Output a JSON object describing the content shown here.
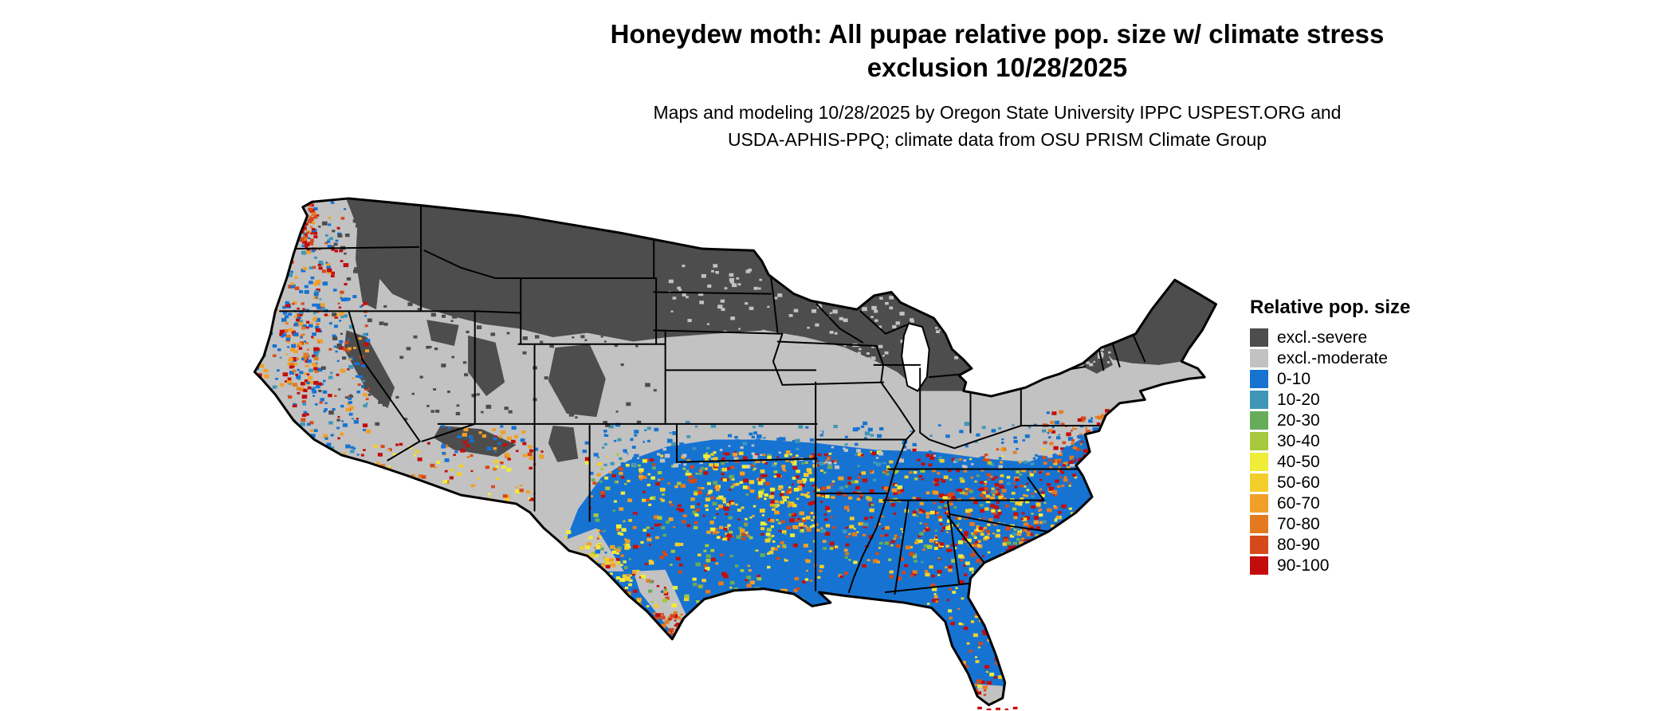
{
  "figure": {
    "title_line1": "Honeydew moth: All pupae relative pop. size w/ climate stress",
    "title_line2": "exclusion 10/28/2025",
    "subtitle_line1": "Maps and modeling 10/28/2025 by Oregon State University IPPC USPEST.ORG and",
    "subtitle_line2": "USDA-APHIS-PPQ; climate data from OSU PRISM Climate Group"
  },
  "map": {
    "region": "Contiguous United States",
    "background_color": "#FFFFFF",
    "border_color": "#000000"
  },
  "legend": {
    "title": "Relative pop. size",
    "items": [
      {
        "label": "excl.-severe",
        "color": "#4D4D4D"
      },
      {
        "label": "excl.-moderate",
        "color": "#C2C2C2"
      },
      {
        "label": "0-10",
        "color": "#1673D1"
      },
      {
        "label": "10-20",
        "color": "#3F97B7"
      },
      {
        "label": "20-30",
        "color": "#67AC5B"
      },
      {
        "label": "30-40",
        "color": "#A6C83D"
      },
      {
        "label": "40-50",
        "color": "#EFED38"
      },
      {
        "label": "50-60",
        "color": "#F3CE2B"
      },
      {
        "label": "60-70",
        "color": "#F0A028"
      },
      {
        "label": "70-80",
        "color": "#E47A20"
      },
      {
        "label": "80-90",
        "color": "#D6491A"
      },
      {
        "label": "90-100",
        "color": "#C30D0D"
      }
    ]
  }
}
